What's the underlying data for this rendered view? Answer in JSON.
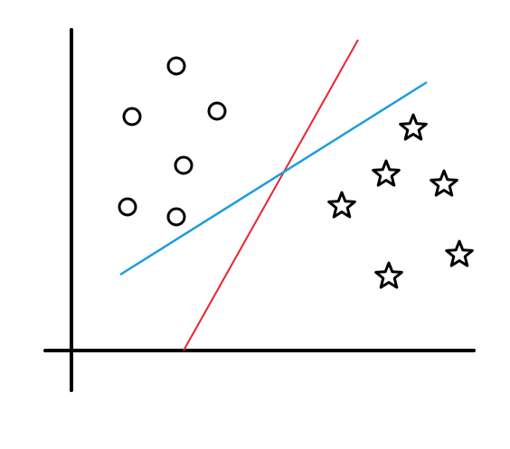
{
  "diagram": {
    "background": "#ffffff",
    "axes": {
      "color": "#000000"
    },
    "circle_class": {
      "marker": "circle-outline-icon",
      "color": "#000000",
      "count": 6
    },
    "star_class": {
      "marker": "star-outline-icon",
      "color": "#000000",
      "count": 6
    },
    "boundaries": [
      {
        "id": "red",
        "color": "#e8252c"
      },
      {
        "id": "blue",
        "color": "#1a9de0"
      }
    ]
  }
}
